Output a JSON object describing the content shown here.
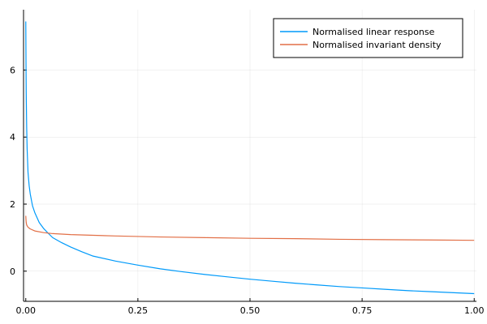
{
  "chart_data": {
    "type": "line",
    "title": "",
    "xlabel": "",
    "ylabel": "",
    "xlim": [
      -0.005,
      1.005
    ],
    "ylim": [
      -0.9,
      7.8
    ],
    "x_ticks": [
      0.0,
      0.25,
      0.5,
      0.75,
      1.0
    ],
    "x_tick_labels": [
      "0.00",
      "0.25",
      "0.50",
      "0.75",
      "1.00"
    ],
    "y_ticks": [
      0,
      2,
      4,
      6
    ],
    "y_tick_labels": [
      "0",
      "2",
      "4",
      "6"
    ],
    "grid": true,
    "legend_position": "top-right",
    "series": [
      {
        "name": "Normalised linear response",
        "color": "#009AFA",
        "x": [
          0.0,
          0.0005,
          0.001,
          0.002,
          0.003,
          0.005,
          0.0075,
          0.01,
          0.015,
          0.02,
          0.03,
          0.04,
          0.05,
          0.06,
          0.08,
          0.1,
          0.125,
          0.15,
          0.2,
          0.25,
          0.3,
          0.35,
          0.4,
          0.45,
          0.5,
          0.55,
          0.6,
          0.65,
          0.7,
          0.75,
          0.8,
          0.85,
          0.9,
          0.95,
          1.0
        ],
        "y": [
          7.45,
          6.2,
          5.3,
          4.3,
          3.65,
          2.95,
          2.55,
          2.3,
          1.95,
          1.75,
          1.45,
          1.27,
          1.13,
          1.0,
          0.85,
          0.72,
          0.58,
          0.45,
          0.3,
          0.18,
          0.07,
          -0.02,
          -0.1,
          -0.17,
          -0.24,
          -0.3,
          -0.36,
          -0.41,
          -0.46,
          -0.5,
          -0.54,
          -0.58,
          -0.61,
          -0.64,
          -0.67
        ]
      },
      {
        "name": "Normalised invariant density",
        "color": "#E26F46",
        "x": [
          0.0,
          0.0005,
          0.001,
          0.002,
          0.004,
          0.006,
          0.01,
          0.02,
          0.04,
          0.06,
          0.1,
          0.2,
          0.3,
          0.4,
          0.5,
          0.6,
          0.7,
          0.8,
          0.9,
          1.0
        ],
        "y": [
          1.65,
          1.52,
          1.45,
          1.38,
          1.33,
          1.3,
          1.26,
          1.2,
          1.15,
          1.12,
          1.09,
          1.05,
          1.02,
          1.0,
          0.98,
          0.97,
          0.95,
          0.94,
          0.93,
          0.92
        ]
      }
    ]
  }
}
